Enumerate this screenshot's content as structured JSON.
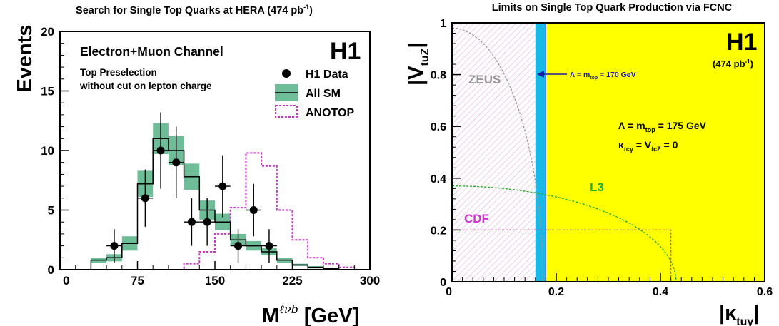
{
  "chart_data": [
    {
      "type": "histogram",
      "title": "Search for Single Top Quarks at HERA (474 pb",
      "title_sup": "-1",
      "title_end": ")",
      "xlabel": "M",
      "xlabel_sup": "ℓνb",
      "xlabel_unit": " [GeV]",
      "ylabel": "Events",
      "xlim": [
        0,
        300
      ],
      "ylim": [
        0,
        20
      ],
      "x_ticks": [
        0,
        75,
        150,
        225,
        300
      ],
      "y_ticks": [
        0,
        5,
        10,
        15,
        20
      ],
      "annotation_channel": "Electron+Muon Channel",
      "annotation_cut_1": "Top Preselection",
      "annotation_cut_2": "without cut on lepton charge",
      "experiment_label": "H1",
      "legend": {
        "position": "top-right",
        "data_label": "H1 Data",
        "sm_label": "All SM",
        "signal_label": "ANOTOP"
      },
      "bin_edges": [
        0,
        15,
        30,
        45,
        60,
        75,
        90,
        105,
        120,
        135,
        150,
        165,
        180,
        195,
        210,
        225,
        240,
        255,
        270,
        285,
        300
      ],
      "sm_values": [
        0,
        0,
        0.8,
        1.0,
        2.2,
        7.2,
        11.0,
        10.0,
        7.8,
        5.0,
        4.0,
        2.5,
        2.0,
        1.5,
        0.8,
        0.4,
        0.2,
        0.1,
        0,
        0
      ],
      "sm_err": [
        0,
        0,
        0.2,
        0.3,
        0.6,
        1.1,
        1.3,
        1.2,
        1.1,
        0.8,
        0.7,
        0.5,
        0.4,
        0.3,
        0.2,
        0.1,
        0.1,
        0.05,
        0,
        0
      ],
      "anotop_values": [
        0,
        0,
        0,
        0,
        0,
        0,
        0,
        0,
        0.5,
        1.5,
        3.0,
        5.2,
        9.8,
        8.7,
        5.0,
        2.5,
        1.0,
        0.5,
        0.2,
        0
      ],
      "data_points": [
        {
          "x": 52.5,
          "y": 2,
          "err": 1.4
        },
        {
          "x": 82.5,
          "y": 6,
          "err": 2.4
        },
        {
          "x": 97.5,
          "y": 10,
          "err": 3.2
        },
        {
          "x": 112.5,
          "y": 9,
          "err": 3.0
        },
        {
          "x": 127.5,
          "y": 4,
          "err": 2.0
        },
        {
          "x": 142.5,
          "y": 4,
          "err": 2.0
        },
        {
          "x": 157.5,
          "y": 7,
          "err": 2.6
        },
        {
          "x": 172.5,
          "y": 2,
          "err": 1.4
        },
        {
          "x": 187.5,
          "y": 5,
          "err": 2.2
        },
        {
          "x": 202.5,
          "y": 2,
          "err": 1.4
        }
      ],
      "data_xerr": 7.5,
      "colors": {
        "sm_band": "#6fbd98",
        "sm_line": "#000000",
        "anotop": "#cc33cc",
        "data": "#000000"
      }
    },
    {
      "type": "exclusion_limits",
      "title": "Limits on Single Top Quark Production via FCNC",
      "xlabel": "|κ",
      "xlabel_sub": "tuγ",
      "xlabel_end": "|",
      "ylabel": "|V",
      "ylabel_sub": "tuZ",
      "ylabel_end": "|",
      "xlim": [
        0,
        0.6
      ],
      "ylim": [
        0,
        1
      ],
      "x_ticks": [
        0,
        0.2,
        0.4,
        0.6
      ],
      "x_tick_labels": [
        "0",
        "0.2",
        "0.4",
        "0.6"
      ],
      "y_ticks": [
        0,
        0.2,
        0.4,
        0.6,
        0.8,
        1
      ],
      "y_tick_labels": [
        "0",
        "0.2",
        "0.4",
        "0.6",
        "0.8",
        "1"
      ],
      "experiment_label": "H1",
      "lumi_label": "(474 pb",
      "lumi_sup": "-1",
      "lumi_end": ")",
      "h1_limit_175": 0.18,
      "h1_limit_170": 0.16,
      "h1_band_label": "Λ = m",
      "h1_band_label_sub": "top",
      "h1_band_label_end": " = 170 GeV",
      "assumption_1": "Λ = m",
      "assumption_1_sub": "top",
      "assumption_1_end": " = 175 GeV",
      "assumption_2": "κ",
      "assumption_2_sub": "tcγ",
      "assumption_2_mid": " = V",
      "assumption_2_sub2": "tcZ",
      "assumption_2_end": " = 0",
      "zeus": {
        "label": "ZEUS",
        "x_at_zero": 0.174,
        "y_at_zero": 0.98
      },
      "l3": {
        "label": "L3",
        "x_at_zero": 0.43,
        "y_at_zero": 0.37
      },
      "cdf": {
        "label": "CDF",
        "kappa_limit": 0.42,
        "v_limit": 0.2
      },
      "colors": {
        "allowed": "#ffff00",
        "band": "#1ab8e6",
        "zeus": "#999999",
        "zeus_hatch": "#e8b6e0",
        "l3": "#22aa22",
        "cdf": "#cc33cc",
        "arrow": "#1a1aa8"
      }
    }
  ]
}
